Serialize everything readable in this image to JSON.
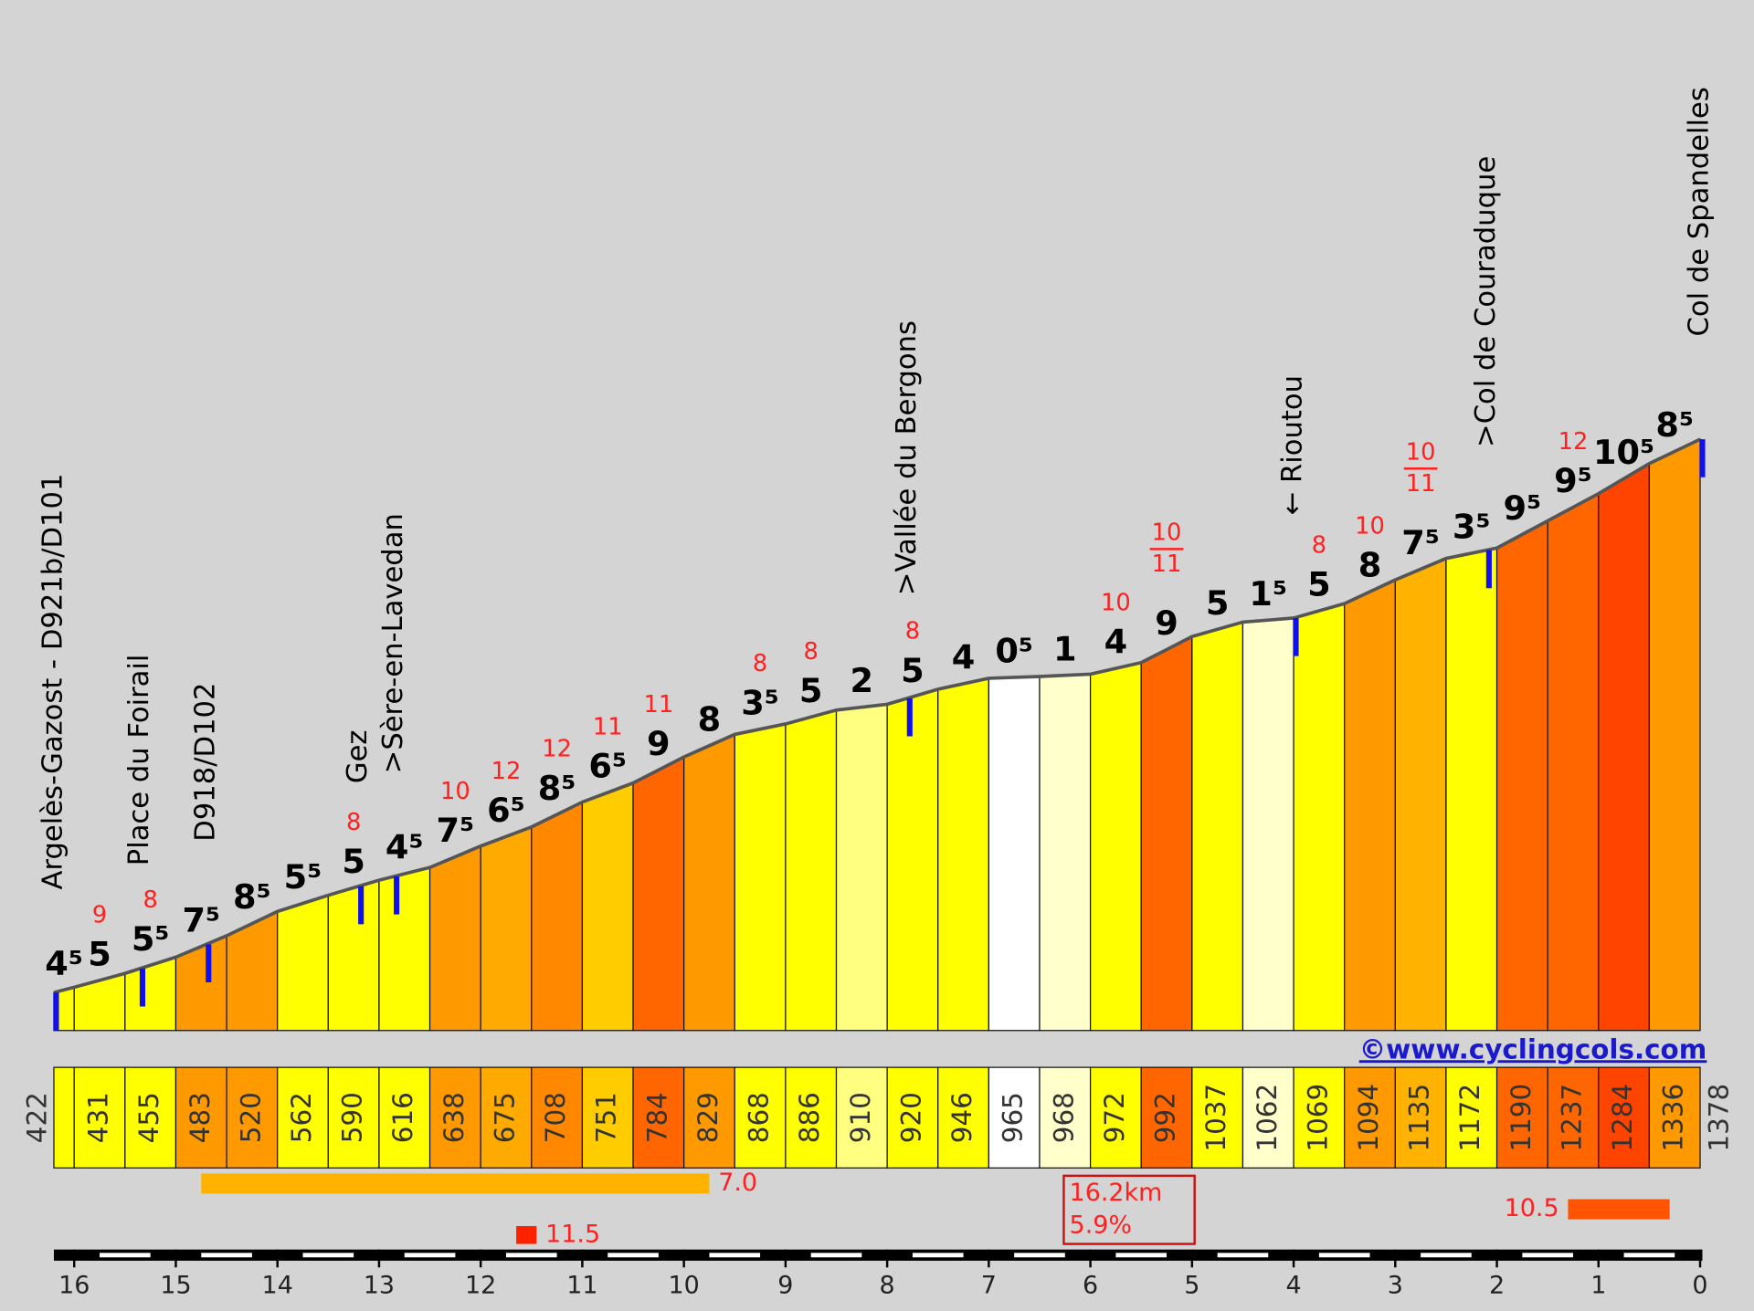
{
  "chart_data": {
    "type": "profile",
    "km": [
      16.2,
      16,
      15.5,
      15,
      14.5,
      14,
      13.5,
      13,
      12.5,
      12,
      11.5,
      11,
      10.5,
      10,
      9.5,
      9,
      8.5,
      8,
      7.5,
      7,
      6.5,
      6,
      5.5,
      5,
      4.5,
      4,
      3.5,
      3,
      2.5,
      2,
      1.5,
      1,
      0.5,
      0
    ],
    "altitudes": [
      422,
      431,
      455,
      483,
      520,
      562,
      590,
      616,
      638,
      675,
      708,
      751,
      784,
      829,
      868,
      886,
      910,
      920,
      946,
      965,
      968,
      972,
      992,
      1037,
      1062,
      1069,
      1094,
      1135,
      1172,
      1190,
      1237,
      1284,
      1336,
      1378
    ],
    "gradients": [
      4.5,
      5,
      5.5,
      7.5,
      8.5,
      5.5,
      5,
      4.5,
      7.5,
      6.5,
      8.5,
      6.5,
      9,
      8,
      3.5,
      5,
      2,
      5,
      4,
      0.5,
      1,
      4,
      9,
      5,
      1.5,
      5,
      8,
      7.5,
      3.5,
      9.5,
      9.5,
      10.5,
      8.5
    ],
    "value_labels": [
      "4⁵",
      "5",
      "5⁵",
      "7⁵",
      "8⁵",
      "5⁵",
      "5",
      "4⁵",
      "7⁵",
      "6⁵",
      "8⁵",
      "6⁵",
      "9",
      "8",
      "3⁵",
      "5",
      "2",
      "5",
      "4",
      "0⁵",
      "1",
      "4",
      "9",
      "5",
      "1⁵",
      "5",
      "8",
      "7⁵",
      "3⁵",
      "9⁵",
      "9⁵",
      "10⁵",
      "8⁵"
    ],
    "max_gradients": [
      null,
      9,
      8,
      null,
      null,
      null,
      8,
      null,
      10,
      12,
      12,
      11,
      11,
      null,
      8,
      8,
      null,
      8,
      null,
      null,
      null,
      10,
      [
        10,
        11
      ],
      null,
      null,
      8,
      10,
      [
        10,
        11
      ],
      null,
      null,
      12,
      null,
      null
    ],
    "colors": [
      "#ffff00",
      "#ffff00",
      "#ffff00",
      "#ff9900",
      "#ff9900",
      "#ffff00",
      "#ffff00",
      "#ffff00",
      "#ff9900",
      "#ffaa00",
      "#ff8800",
      "#ffcc00",
      "#ff6600",
      "#ff9900",
      "#ffff00",
      "#ffff00",
      "#ffff80",
      "#ffff00",
      "#ffff00",
      "#ffffff",
      "#ffffcc",
      "#ffff00",
      "#ff6600",
      "#ffff00",
      "#ffffcc",
      "#ffff00",
      "#ff9900",
      "#ffb300",
      "#ffff00",
      "#ff6600",
      "#ff6600",
      "#ff4400",
      "#ff9900"
    ],
    "waypoints": [
      {
        "name": "Argelès-Gazost - D921b/D101",
        "km": 16.2
      },
      {
        "name": "Place du Foirail",
        "km": 15.35
      },
      {
        "name": "D918/D102",
        "km": 14.7
      },
      {
        "name": "Gez",
        "km": 13.2
      },
      {
        "name": ">Sère-en-Lavedan",
        "km": 12.85
      },
      {
        "name": ">Vallée du Bergons",
        "km": 7.8
      },
      {
        "name": "← Rioutou",
        "km": 4.0
      },
      {
        "name": ">Col de Couraduque",
        "km": 2.1
      },
      {
        "name": "Col de Spandelles",
        "km": 0
      }
    ],
    "xlim": [
      16.2,
      0
    ],
    "xticks": [
      16,
      15,
      14,
      13,
      12,
      11,
      10,
      9,
      8,
      7,
      6,
      5,
      4,
      3,
      2,
      1,
      0
    ],
    "best": [
      {
        "value": 7.0,
        "label": "7.0",
        "km": [
          14.75,
          9.75
        ],
        "color": "#ffb300"
      },
      {
        "value": 10.5,
        "label": "10.5",
        "km": [
          1.3,
          0.3
        ],
        "color": "#ff5500"
      },
      {
        "value": 11.5,
        "label": "11.5",
        "km": [
          11.65,
          11.45
        ],
        "color": "#ff2200"
      }
    ],
    "total": {
      "distance": 16.2,
      "distance_label": "16.2km",
      "gradient": 5.9,
      "gradient_label": "5.9%"
    },
    "credit": "©www.cyclingcols.com"
  }
}
